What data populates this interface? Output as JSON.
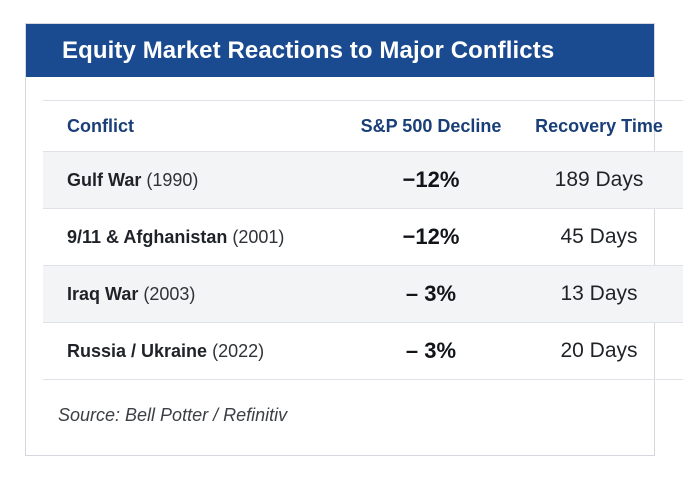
{
  "title": "Equity Market Reactions to Major Conflicts",
  "chart_data": {
    "type": "table",
    "title": "Equity Market Reactions to Major Conflicts",
    "columns": [
      "Conflict",
      "S&P 500 Decline",
      "Recovery Time"
    ],
    "rows": [
      {
        "event": "Gulf War",
        "year": "(1990)",
        "decline": "−12%",
        "recovery": "189 Days"
      },
      {
        "event": "9/11 & Afghanistan",
        "year": "(2001)",
        "decline": "−12%",
        "recovery": "45 Days"
      },
      {
        "event": "Iraq War",
        "year": "(2003)",
        "decline": "– 3%",
        "recovery": "13 Days"
      },
      {
        "event": "Russia / Ukraine",
        "year": "(2022)",
        "decline": "– 3%",
        "recovery": "20 Days"
      }
    ],
    "source": "Source: Bell Potter / Refinitiv"
  },
  "colors": {
    "banner": "#1a4a8f",
    "header_text": "#1a3f78",
    "stripe": "#f3f4f6"
  }
}
